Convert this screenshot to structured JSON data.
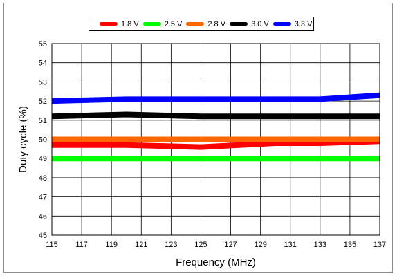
{
  "chart_data": {
    "type": "line",
    "title": "",
    "xlabel": "Frequency (MHz)",
    "ylabel": "Duty cycle (%)",
    "xlim": [
      115,
      137
    ],
    "ylim": [
      45,
      55
    ],
    "xticks": [
      115,
      117,
      119,
      121,
      123,
      125,
      127,
      129,
      131,
      133,
      135,
      137
    ],
    "yticks": [
      45,
      46,
      47,
      48,
      49,
      50,
      51,
      52,
      53,
      54,
      55
    ],
    "grid": true,
    "legend_position": "top",
    "series": [
      {
        "name": "1.8 V",
        "color": "#ff0000",
        "x": [
          115,
          120,
          125,
          130,
          133,
          137
        ],
        "y": [
          49.7,
          49.7,
          49.6,
          49.8,
          49.8,
          49.9
        ]
      },
      {
        "name": "2.5 V",
        "color": "#00ff00",
        "x": [
          115,
          137
        ],
        "y": [
          49.0,
          49.0
        ]
      },
      {
        "name": "2.8 V",
        "color": "#ff6600",
        "x": [
          115,
          137
        ],
        "y": [
          50.0,
          50.0
        ]
      },
      {
        "name": "3.0 V",
        "color": "#000000",
        "x": [
          115,
          120,
          125,
          130,
          133,
          137
        ],
        "y": [
          51.2,
          51.3,
          51.2,
          51.2,
          51.2,
          51.2
        ]
      },
      {
        "name": "3.3 V",
        "color": "#0000ff",
        "x": [
          115,
          120,
          125,
          130,
          133,
          137
        ],
        "y": [
          52.0,
          52.1,
          52.1,
          52.1,
          52.1,
          52.3
        ]
      }
    ]
  }
}
